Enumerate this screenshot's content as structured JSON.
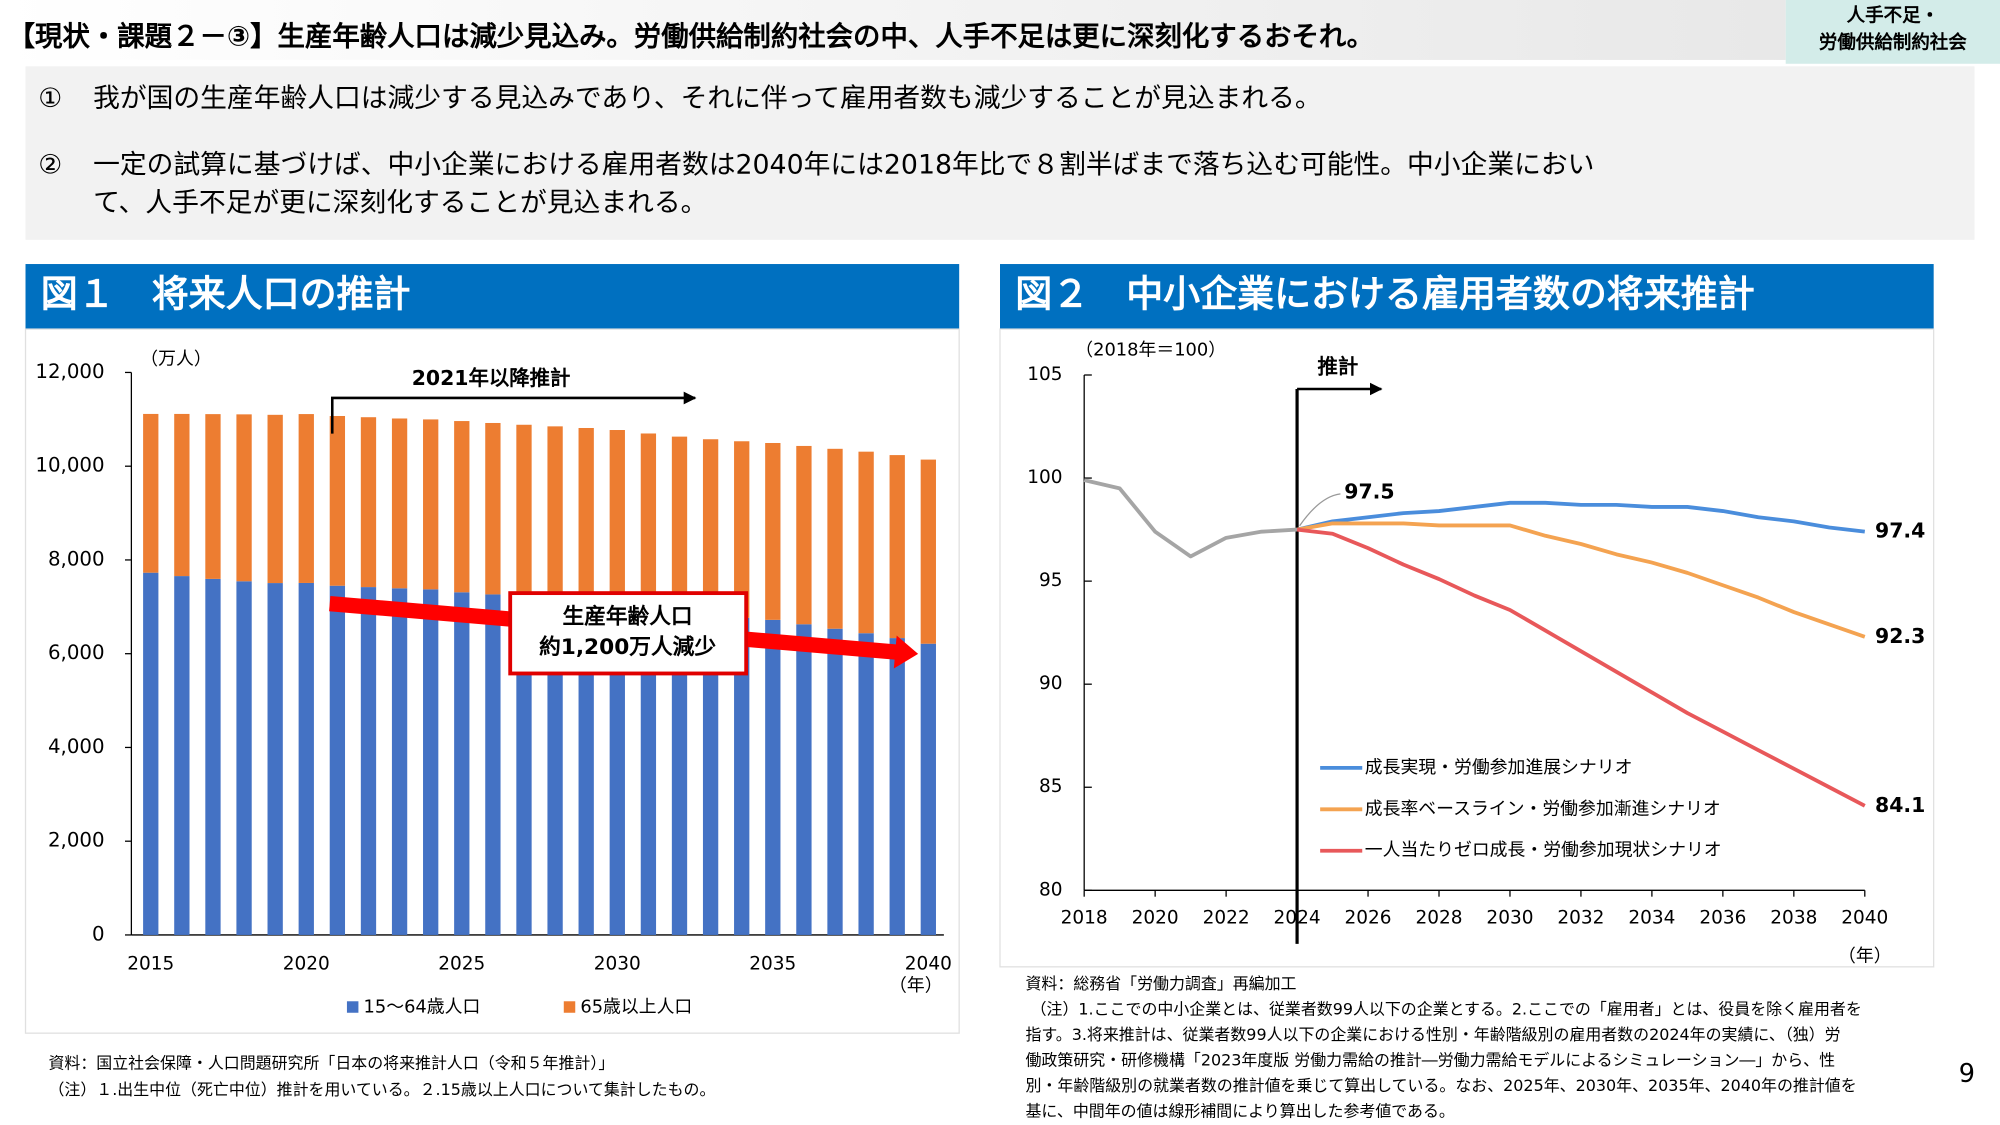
{
  "header": {
    "title": "【現状・課題２－③】生産年齢人口は減少見込み。労働供給制約社会の中、人手不足は更に深刻化するおそれ。",
    "tag": [
      "人手不足・",
      "労働供給制約社会"
    ]
  },
  "bullets": [
    {
      "marker": "①",
      "lines": [
        "我が国の生産年齢人口は減少する見込みであり、それに伴って雇用者数も減少することが見込まれる。"
      ]
    },
    {
      "marker": "②",
      "lines": [
        "一定の試算に基づけば、中小企業における雇用者数は2040年には2018年比で８割半ばまで落ち込む可能性。中小企業におい",
        "て、人手不足が更に深刻化することが見込まれる。"
      ]
    }
  ],
  "page_number": "9",
  "chart_data": [
    {
      "type": "bar",
      "stacked": true,
      "title": "図１　将来人口の推計",
      "y_unit": "（万人）",
      "x_unit": "（年）",
      "categories": [
        "2015",
        null,
        null,
        null,
        null,
        "2020",
        null,
        null,
        null,
        null,
        "2025",
        null,
        null,
        null,
        null,
        "2030",
        null,
        null,
        null,
        null,
        "2035",
        null,
        null,
        null,
        null,
        "2040"
      ],
      "series": [
        {
          "name": "15～64歳人口",
          "color": "#4472c4",
          "values": [
            7728,
            7656,
            7596,
            7545,
            7507,
            7509,
            7450,
            7421,
            7395,
            7373,
            7310,
            7265,
            7222,
            7183,
            7138,
            7076,
            6993,
            6909,
            6833,
            6767,
            6722,
            6628,
            6533,
            6437,
            6333,
            6213
          ]
        },
        {
          "name": "65歳以上人口",
          "color": "#ed7d31",
          "values": [
            3387,
            3459,
            3515,
            3561,
            3589,
            3603,
            3621,
            3624,
            3623,
            3625,
            3653,
            3657,
            3662,
            3667,
            3677,
            3696,
            3705,
            3722,
            3742,
            3765,
            3773,
            3804,
            3838,
            3873,
            3904,
            3928
          ]
        }
      ],
      "ylim": [
        0,
        12000
      ],
      "yticks": [
        0,
        {
          "value": 2000,
          "label": "2,000"
        },
        {
          "value": 4000,
          "label": "4,000"
        },
        {
          "value": 6000,
          "label": "6,000"
        },
        {
          "value": 8000,
          "label": "8,000"
        },
        {
          "value": 10000,
          "label": "10,000"
        },
        {
          "value": 12000,
          "label": "12,000"
        }
      ],
      "projection_start": 2021,
      "annotations": {
        "projection": "2021年以降推計",
        "decline": [
          "生産年齢人口",
          "約1,200万人減少"
        ]
      },
      "legend": "bottom",
      "source": [
        "資料：国立社会保障・人口問題研究所「日本の将来推計人口（令和５年推計）」",
        "（注）１.出生中位（死亡中位）推計を用いている。２.15歳以上人口について集計したもの。"
      ]
    },
    {
      "type": "line",
      "title": "図２　中小企業における雇用者数の将来推計",
      "y_unit": "（2018年＝100）",
      "x_unit": "（年）",
      "x": [
        2018,
        2019,
        2020,
        2021,
        2022,
        2023,
        2024,
        2025,
        2026,
        2027,
        2028,
        2029,
        2030,
        2031,
        2032,
        2033,
        2034,
        2035,
        2036,
        2037,
        2038,
        2039,
        2040
      ],
      "series": [
        {
          "color": "#a5a5a5",
          "values": [
            99.9,
            99.5,
            97.4,
            96.2,
            97.1,
            97.4,
            97.5,
            null,
            null,
            null,
            null,
            null,
            null,
            null,
            null,
            null,
            null,
            null,
            null,
            null,
            null,
            null,
            null
          ]
        },
        {
          "name": "成長実現・労働参加進展シナリオ",
          "color": "#4a8ddc",
          "values": [
            null,
            null,
            null,
            null,
            null,
            null,
            97.5,
            97.9,
            98.1,
            98.3,
            98.4,
            98.6,
            98.8,
            98.8,
            98.7,
            98.7,
            98.6,
            98.6,
            98.4,
            98.1,
            97.9,
            97.6,
            97.4
          ]
        },
        {
          "name": "成長率ベースライン・労働参加漸進シナリオ",
          "color": "#f4a351",
          "values": [
            null,
            null,
            null,
            null,
            null,
            null,
            97.5,
            97.8,
            97.8,
            97.8,
            97.7,
            97.7,
            97.7,
            97.2,
            96.8,
            96.3,
            95.9,
            95.4,
            94.8,
            94.2,
            93.5,
            92.9,
            92.3
          ]
        },
        {
          "name": "一人当たりゼロ成長・労働参加現状シナリオ",
          "color": "#e8585a",
          "values": [
            null,
            null,
            null,
            null,
            null,
            null,
            97.5,
            97.3,
            96.6,
            95.8,
            95.1,
            94.3,
            93.6,
            92.6,
            91.6,
            90.6,
            89.6,
            88.6,
            87.7,
            86.8,
            85.9,
            85.0,
            84.1
          ]
        }
      ],
      "xlim": [
        2018,
        2040
      ],
      "xticks": [
        2018,
        2020,
        2022,
        2024,
        2026,
        2028,
        2030,
        2032,
        2034,
        2036,
        2038,
        2040
      ],
      "ylim": [
        80,
        105
      ],
      "yticks": [
        80,
        85,
        90,
        95,
        100,
        105
      ],
      "projection_start": 2024,
      "annotations": {
        "projection": "推計"
      },
      "legend": "left",
      "source": [
        "資料：総務省「労働力調査」再編加工",
        "（注）1.ここでの中小企業とは、従業者数99人以下の企業とする。2.ここでの「雇用者」とは、役員を除く雇用者を",
        "指す。3.将来推計は、従業者数99人以下の企業における性別・年齢階級別の雇用者数の2024年の実績に、（独）労",
        "働政策研究・研修機構「2023年度版 労働力需給の推計―労働力需給モデルによるシミュレーション―」から、性",
        "別・年齢階級別の就業者数の推計値を乗じて算出している。なお、2025年、2030年、2035年、2040年の推計値を",
        "基に、中間年の値は線形補間により算出した参考値である。"
      ]
    }
  ]
}
